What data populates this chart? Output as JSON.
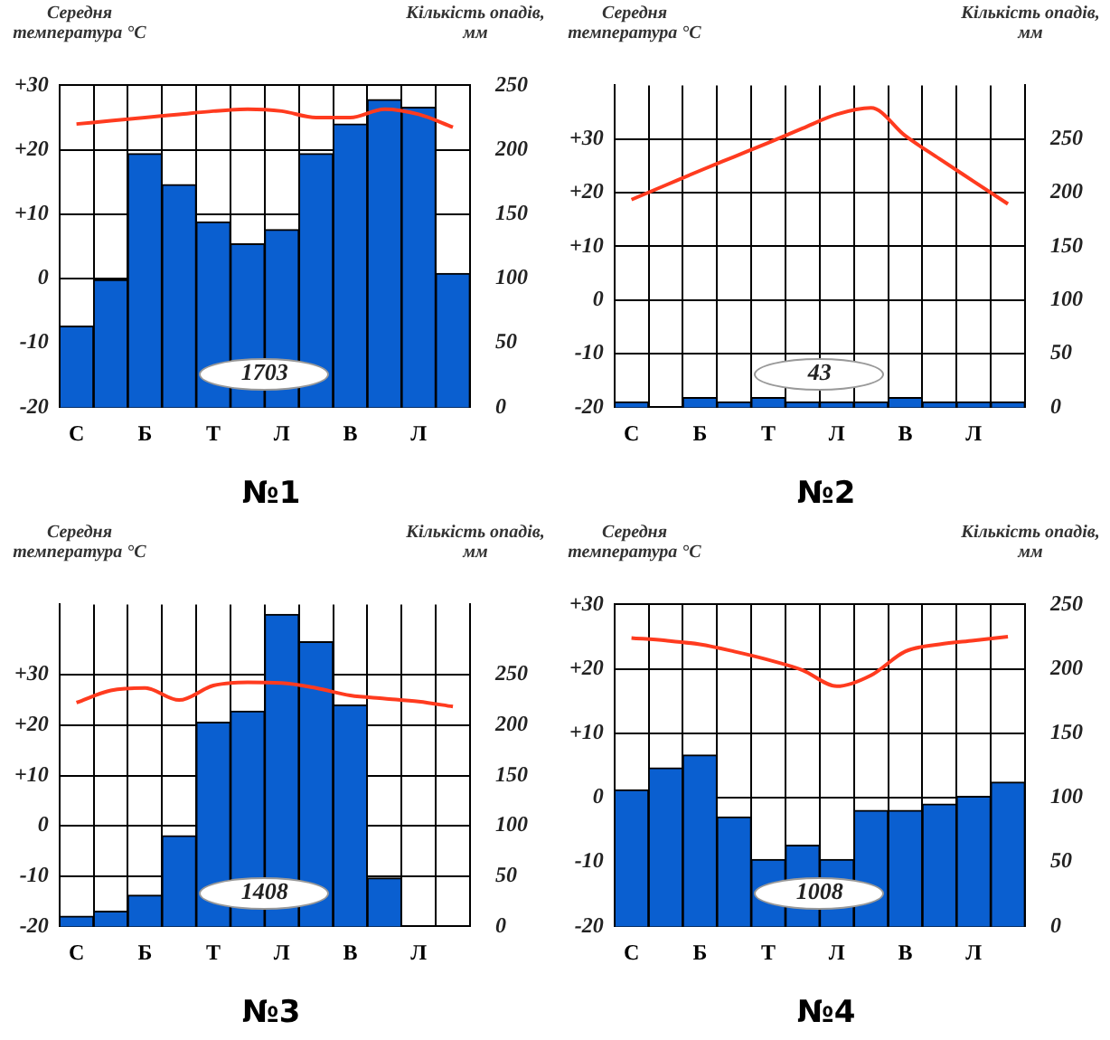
{
  "chart_data": [
    {
      "type": "bar",
      "title": "№1",
      "ylabel": "Середня температура °C",
      "y2label": "Кількість опадів, мм",
      "annotations": [
        "1703"
      ],
      "categories": [
        "С",
        null,
        "Б",
        null,
        "Т",
        null,
        "Л",
        null,
        "В",
        null,
        "Л",
        null
      ],
      "series": [
        {
          "axis": "y2",
          "color": "#0a5fd0",
          "values": [
            63,
            99,
            197,
            173,
            144,
            127,
            138,
            197,
            220,
            239,
            233,
            104
          ]
        },
        {
          "type": "line",
          "color": "#ff3b1f",
          "values": [
            24,
            24.5,
            25,
            25.5,
            26,
            26.3,
            26,
            25,
            25,
            26.3,
            25.5,
            23.5
          ]
        }
      ],
      "ylim": [
        -20,
        30
      ],
      "yticks": [
        {
          "value": -20,
          "label": "-20"
        },
        {
          "value": -10,
          "label": "-10"
        },
        {
          "value": 0,
          "label": "0"
        },
        {
          "value": 10,
          "label": "+10"
        },
        {
          "value": 20,
          "label": "+20"
        },
        {
          "value": 30,
          "label": "+30"
        }
      ],
      "y2lim": [
        0,
        250
      ],
      "y2ticks": [
        0,
        50,
        100,
        150,
        200,
        250
      ],
      "grid": true,
      "legend": false,
      "marker": "none"
    },
    {
      "type": "bar",
      "title": "№2",
      "ylabel": "Середня температура °C",
      "y2label": "Кількість опадів, мм",
      "annotations": [
        "43"
      ],
      "categories": [
        "С",
        null,
        "Б",
        null,
        "Т",
        null,
        "Л",
        null,
        "В",
        null,
        "Л",
        null
      ],
      "series": [
        {
          "axis": "y2",
          "color": "#0a5fd0",
          "values": [
            5,
            0,
            9,
            5,
            9,
            5,
            5,
            5,
            9,
            5,
            5,
            5
          ]
        },
        {
          "type": "line",
          "color": "#ff3b1f",
          "values": [
            18.7,
            21.4,
            24.1,
            26.7,
            29.3,
            32,
            34.6,
            35.8,
            30.6,
            26.3,
            22.1,
            17.9
          ]
        }
      ],
      "ylim": [
        -20,
        40
      ],
      "yticks": [
        {
          "value": -20,
          "label": "-20"
        },
        {
          "value": -10,
          "label": "-10"
        },
        {
          "value": 0,
          "label": "0"
        },
        {
          "value": 10,
          "label": "+10"
        },
        {
          "value": 20,
          "label": "+20"
        },
        {
          "value": 30,
          "label": "+30"
        }
      ],
      "y2lim": [
        0,
        300
      ],
      "y2ticks": [
        0,
        50,
        100,
        150,
        200,
        250
      ],
      "grid": true,
      "legend": false,
      "marker": "none"
    },
    {
      "type": "bar",
      "title": "№3",
      "ylabel": "Середня температура °C",
      "y2label": "Кількість опадів, мм",
      "annotations": [
        "1408"
      ],
      "categories": [
        "С",
        null,
        "Б",
        null,
        "Т",
        null,
        "Л",
        null,
        "В",
        null,
        "Л",
        null
      ],
      "series": [
        {
          "axis": "y2",
          "color": "#0a5fd0",
          "values": [
            10,
            15,
            31,
            90,
            203,
            214,
            310,
            283,
            220,
            48,
            0,
            0
          ]
        },
        {
          "type": "line",
          "color": "#ff3b1f",
          "values": [
            24.5,
            26.9,
            27.4,
            25,
            27.9,
            28.5,
            28.4,
            27.4,
            25.9,
            25.3,
            24.7,
            23.7
          ]
        }
      ],
      "ylim": [
        -20,
        44
      ],
      "yticks": [
        {
          "value": -20,
          "label": "-20"
        },
        {
          "value": -10,
          "label": "-10"
        },
        {
          "value": 0,
          "label": "0"
        },
        {
          "value": 10,
          "label": "+10"
        },
        {
          "value": 20,
          "label": "+20"
        },
        {
          "value": 30,
          "label": "+30"
        }
      ],
      "y2lim": [
        0,
        320
      ],
      "y2ticks": [
        0,
        50,
        100,
        150,
        200,
        250
      ],
      "grid": true,
      "legend": false,
      "marker": "none"
    },
    {
      "type": "bar",
      "title": "№4",
      "ylabel": "Середня температура °C",
      "y2label": "Кількість опадів, мм",
      "annotations": [
        "1008"
      ],
      "categories": [
        "С",
        null,
        "Б",
        null,
        "Т",
        null,
        "Л",
        null,
        "В",
        null,
        "Л",
        null
      ],
      "series": [
        {
          "axis": "y2",
          "color": "#0a5fd0",
          "values": [
            106,
            123,
            133,
            85,
            52,
            63,
            52,
            90,
            90,
            95,
            101,
            112
          ]
        },
        {
          "type": "line",
          "color": "#ff3b1f",
          "values": [
            24.8,
            24.4,
            23.8,
            22.7,
            21.4,
            19.8,
            17.3,
            19,
            22.7,
            23.8,
            24.4,
            25
          ]
        }
      ],
      "ylim": [
        -20,
        30
      ],
      "yticks": [
        {
          "value": -20,
          "label": "-20"
        },
        {
          "value": -10,
          "label": "-10"
        },
        {
          "value": 0,
          "label": "0"
        },
        {
          "value": 10,
          "label": "+10"
        },
        {
          "value": 20,
          "label": "+20"
        },
        {
          "value": 30,
          "label": "+30"
        }
      ],
      "y2lim": [
        0,
        250
      ],
      "y2ticks": [
        0,
        50,
        100,
        150,
        200,
        250
      ],
      "grid": true,
      "legend": false,
      "marker": "none"
    }
  ]
}
